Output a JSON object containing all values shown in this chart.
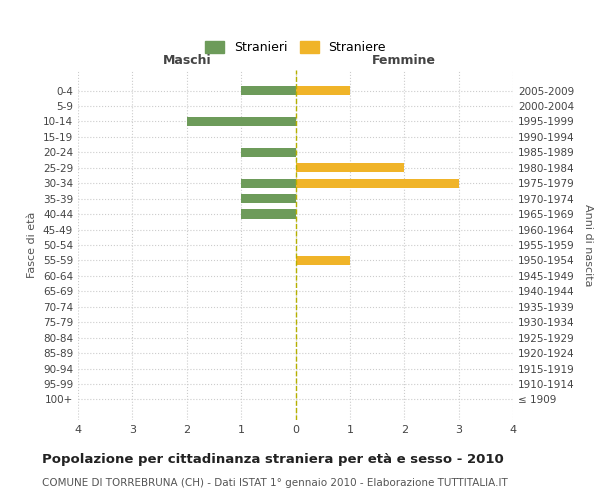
{
  "age_groups": [
    "100+",
    "95-99",
    "90-94",
    "85-89",
    "80-84",
    "75-79",
    "70-74",
    "65-69",
    "60-64",
    "55-59",
    "50-54",
    "45-49",
    "40-44",
    "35-39",
    "30-34",
    "25-29",
    "20-24",
    "15-19",
    "10-14",
    "5-9",
    "0-4"
  ],
  "birth_years": [
    "≤ 1909",
    "1910-1914",
    "1915-1919",
    "1920-1924",
    "1925-1929",
    "1930-1934",
    "1935-1939",
    "1940-1944",
    "1945-1949",
    "1950-1954",
    "1955-1959",
    "1960-1964",
    "1965-1969",
    "1970-1974",
    "1975-1979",
    "1980-1984",
    "1985-1989",
    "1990-1994",
    "1995-1999",
    "2000-2004",
    "2005-2009"
  ],
  "males": [
    0,
    0,
    0,
    0,
    0,
    0,
    0,
    0,
    0,
    0,
    0,
    0,
    1,
    1,
    1,
    0,
    1,
    0,
    2,
    0,
    1
  ],
  "females": [
    0,
    0,
    0,
    0,
    0,
    0,
    0,
    0,
    0,
    1,
    0,
    0,
    0,
    0,
    3,
    2,
    0,
    0,
    0,
    0,
    1
  ],
  "male_color": "#6d9b5a",
  "female_color": "#f0b429",
  "male_label": "Stranieri",
  "female_label": "Straniere",
  "xlabel_left": "Maschi",
  "xlabel_right": "Femmine",
  "ylabel_left": "Fasce di età",
  "ylabel_right": "Anni di nascita",
  "xlim": 4,
  "title": "Popolazione per cittadinanza straniera per età e sesso - 2010",
  "subtitle": "COMUNE DI TORREBRUNA (CH) - Dati ISTAT 1° gennaio 2010 - Elaborazione TUTTITALIA.IT",
  "background_color": "#ffffff",
  "grid_color": "#cccccc"
}
